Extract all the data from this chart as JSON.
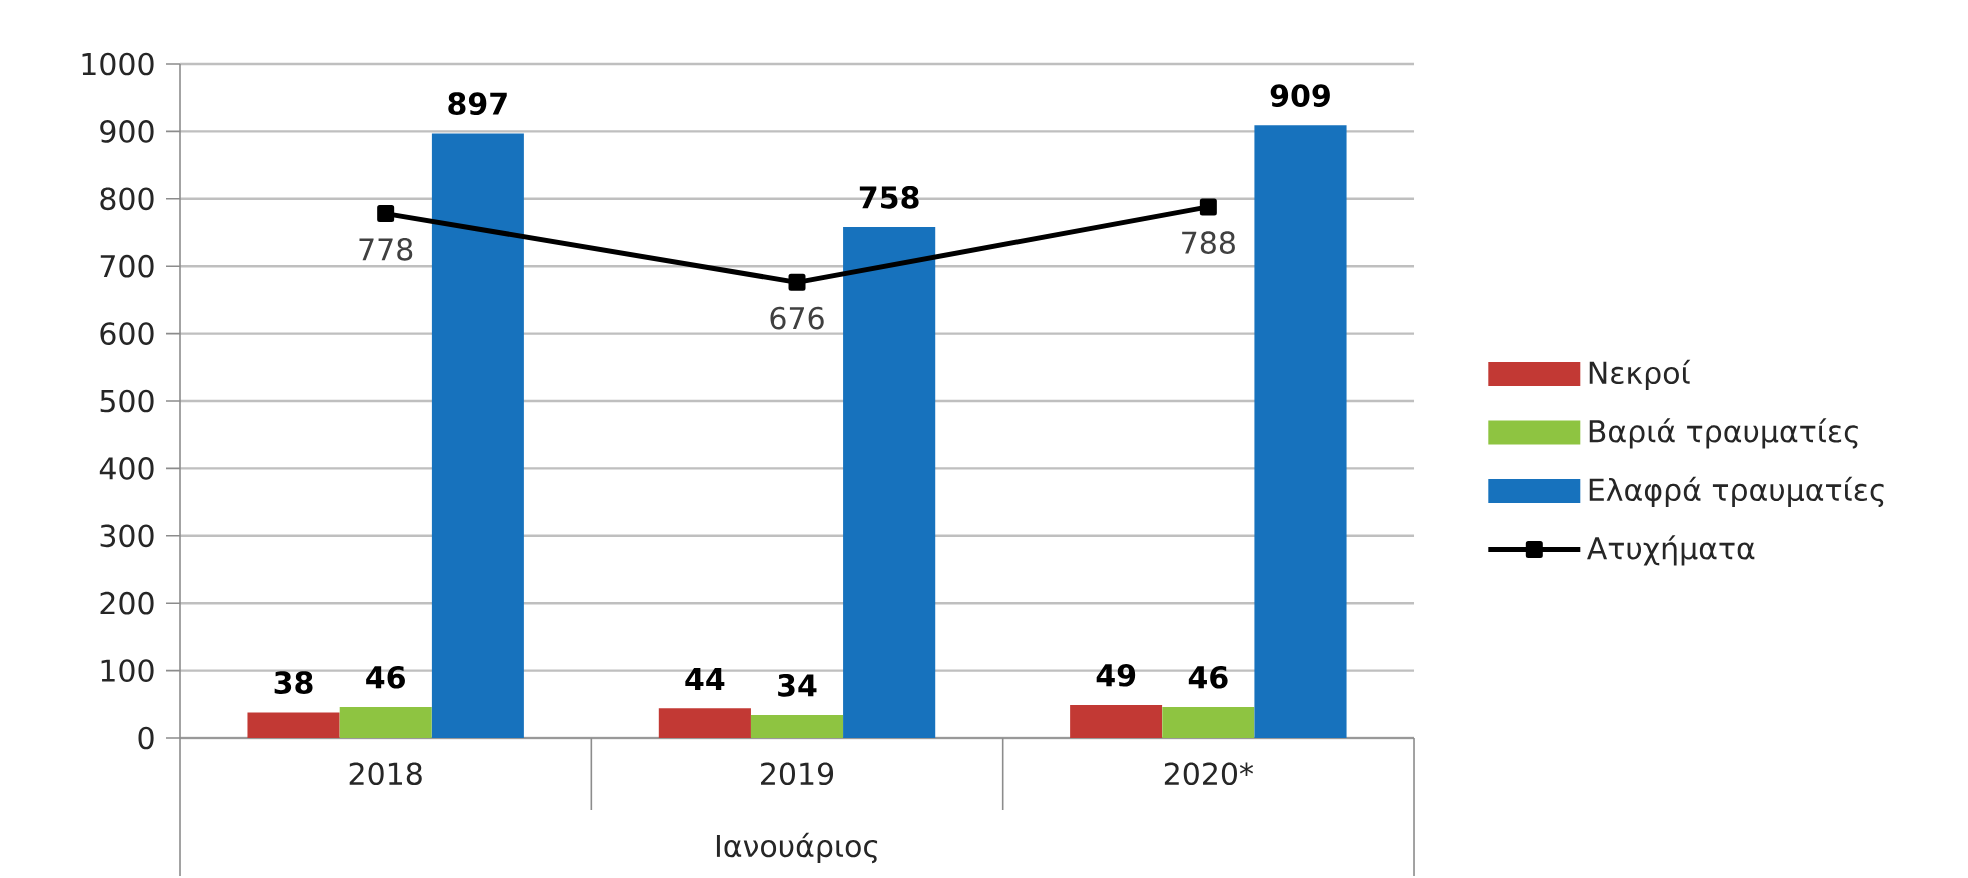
{
  "chart_data": {
    "type": "bar",
    "categories": [
      "2018",
      "2019",
      "2020*"
    ],
    "xlabel": "Ιανουάριος",
    "series": [
      {
        "name": "Νεκροί",
        "color": "#c23934",
        "values": [
          38,
          44,
          49
        ]
      },
      {
        "name": "Βαριά τραυματίες",
        "color": "#8ec441",
        "values": [
          46,
          34,
          46
        ]
      },
      {
        "name": "Ελαφρά τραυματίες",
        "color": "#1772bd",
        "values": [
          897,
          758,
          909
        ]
      },
      {
        "name": "Ατυχήματα",
        "type": "line",
        "color": "#000000",
        "marker": "square",
        "values": [
          778,
          676,
          788
        ]
      }
    ],
    "ylim": [
      0,
      1000
    ],
    "yticks": [
      0,
      100,
      200,
      300,
      400,
      500,
      600,
      700,
      800,
      900,
      1000
    ],
    "grid": "y",
    "legend": "right",
    "data_labels": true
  }
}
